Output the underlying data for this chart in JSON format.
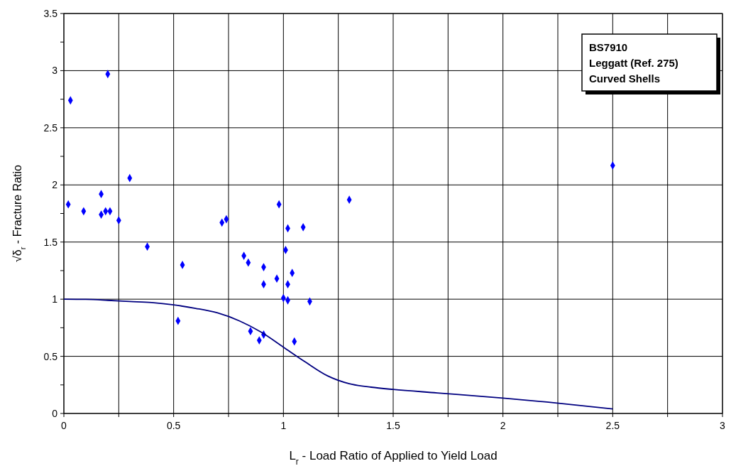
{
  "chart_data": {
    "type": "scatter",
    "xlabel": "L$_{r}$  -  Load Ratio of Applied to Yield Load",
    "ylabel": "√δ$_{r}$ - Fracture Ratio",
    "annotations": [
      "BS7910",
      "Leggatt (Ref. 275)",
      "Curved Shells"
    ],
    "xlim": [
      0,
      3
    ],
    "ylim": [
      0,
      3.5
    ],
    "xticks": [
      0,
      {
        "value": 0.25,
        "label": null
      },
      0.5,
      {
        "value": 0.75,
        "label": null
      },
      1,
      {
        "value": 1.25,
        "label": null
      },
      1.5,
      {
        "value": 1.75,
        "label": null
      },
      2,
      {
        "value": 2.25,
        "label": null
      },
      2.5,
      {
        "value": 2.75,
        "label": null
      },
      3
    ],
    "yticks": [
      0,
      {
        "value": 0.25,
        "label": null
      },
      0.5,
      {
        "value": 0.75,
        "label": null
      },
      1,
      {
        "value": 1.25,
        "label": null
      },
      1.5,
      {
        "value": 1.75,
        "label": null
      },
      2,
      {
        "value": 2.25,
        "label": null
      },
      2.5,
      {
        "value": 2.75,
        "label": null
      },
      3,
      {
        "value": 3.25,
        "label": null
      },
      3.5
    ],
    "grid": true,
    "marker": "diamond",
    "series": [
      {
        "color": "#0000ff",
        "x": [
          0.02,
          0.03,
          0.2,
          0.09,
          0.17,
          0.17,
          0.19,
          0.21,
          0.25,
          0.3,
          0.38,
          0.52,
          0.54,
          0.72,
          0.74,
          0.82,
          0.84,
          0.85,
          0.89,
          0.91,
          0.91,
          0.91,
          0.97,
          0.98,
          1.0,
          1.01,
          1.02,
          1.02,
          1.02,
          1.04,
          1.05,
          1.09,
          1.12,
          1.3,
          2.5
        ],
        "values": [
          1.83,
          2.74,
          2.97,
          1.77,
          1.92,
          1.74,
          1.77,
          1.77,
          1.69,
          2.06,
          1.46,
          0.81,
          1.3,
          1.67,
          1.7,
          1.38,
          1.32,
          0.72,
          0.64,
          0.69,
          1.13,
          1.28,
          1.18,
          1.83,
          1.01,
          1.43,
          1.13,
          0.99,
          1.62,
          1.23,
          0.63,
          1.63,
          0.98,
          1.87,
          2.17
        ]
      },
      {
        "type": "line",
        "color": "#000080",
        "marker": "none",
        "x": [
          0,
          0.1,
          0.2,
          0.3,
          0.4,
          0.5,
          0.6,
          0.7,
          0.8,
          0.9,
          1.0,
          1.1,
          1.2,
          1.3,
          1.4,
          1.5,
          1.7,
          2.0,
          2.2,
          2.5
        ],
        "values": [
          1,
          0.998,
          0.99,
          0.98,
          0.97,
          0.95,
          0.92,
          0.88,
          0.81,
          0.71,
          0.58,
          0.45,
          0.33,
          0.26,
          0.23,
          0.21,
          0.18,
          0.135,
          0.1,
          0.04
        ]
      }
    ]
  }
}
